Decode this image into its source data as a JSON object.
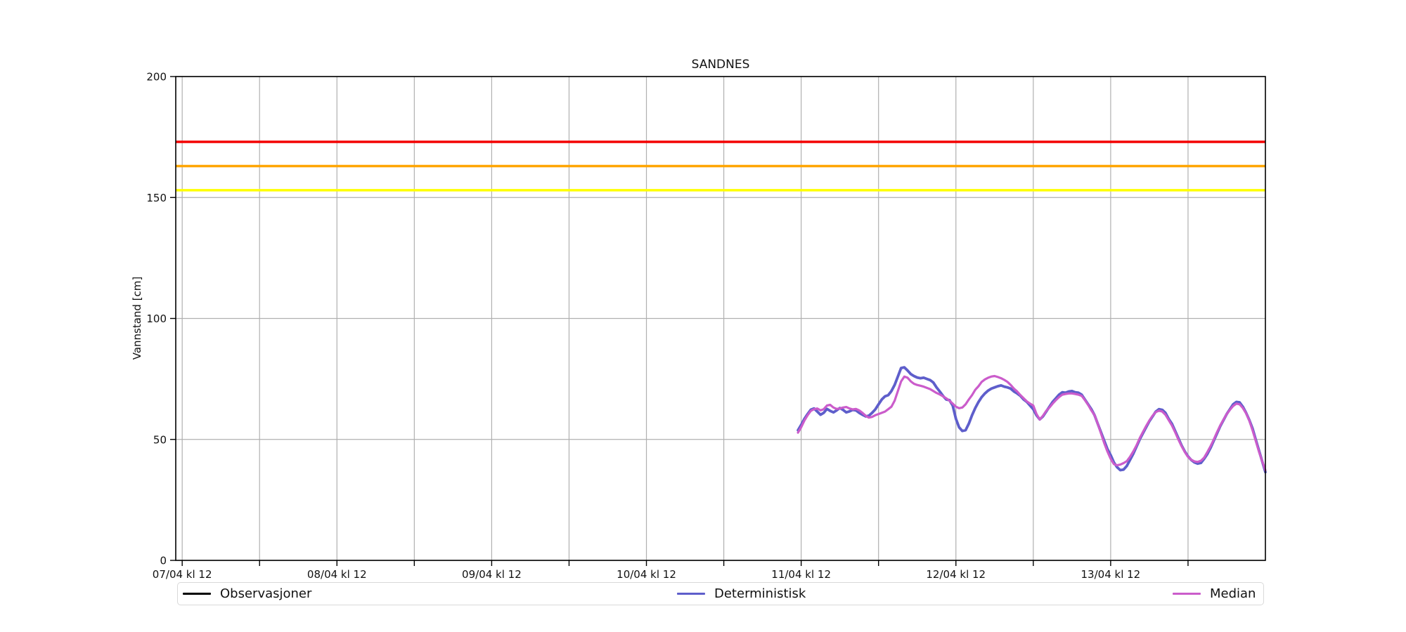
{
  "legend": {
    "items": [
      {
        "label": "Observasjoner",
        "color": "#000000"
      },
      {
        "label": "Deterministisk",
        "color": "#5e5ecb"
      },
      {
        "label": "Median",
        "color": "#cb5ccb"
      }
    ]
  },
  "chart_data": {
    "type": "line",
    "title": "SANDNES",
    "xlabel": "",
    "ylabel": "Vannstand [cm]",
    "ylim": [
      0,
      200
    ],
    "y_ticks": [
      0,
      50,
      100,
      150,
      200
    ],
    "grid": true,
    "grid_color": "#b0b0b0",
    "legend_position": "below-axes",
    "x_axis": {
      "unit": "hours after 07/04 kl 12",
      "min_hour": -1,
      "max_hour": 168,
      "gridline_every_hours": 12
    },
    "x_major_ticks": [
      {
        "hour": 0,
        "label": "07/04 kl 12"
      },
      {
        "hour": 24,
        "label": "08/04 kl 12"
      },
      {
        "hour": 48,
        "label": "09/04 kl 12"
      },
      {
        "hour": 72,
        "label": "10/04 kl 12"
      },
      {
        "hour": 96,
        "label": "11/04 kl 12"
      },
      {
        "hour": 120,
        "label": "12/04 kl 12"
      },
      {
        "hour": 144,
        "label": "13/04 kl 12"
      }
    ],
    "x_minor_tick_hours": [
      12,
      36,
      60,
      84,
      108,
      132,
      156
    ],
    "threshold_lines": [
      {
        "name": "red-level",
        "value": 173,
        "color": "#f40000"
      },
      {
        "name": "orange-level",
        "value": 163,
        "color": "#ffa500"
      },
      {
        "name": "yellow-level",
        "value": 153,
        "color": "#ffff00"
      }
    ],
    "forecast_x_start_hour": 95.5,
    "forecast_x_step_hours": 0.5,
    "series": [
      {
        "name": "Observasjoner",
        "color": "#000000",
        "values": []
      },
      {
        "name": "Deterministisk",
        "color": "#5e5ecb",
        "values": [
          53.8,
          56.0,
          58.5,
          60.5,
          62.3,
          62.8,
          61.5,
          60.2,
          61.0,
          62.6,
          61.8,
          61.2,
          62.0,
          63.0,
          62.2,
          61.2,
          61.6,
          62.2,
          62.0,
          61.0,
          60.2,
          59.5,
          59.8,
          61.0,
          62.4,
          64.5,
          66.5,
          67.8,
          68.3,
          70.0,
          72.5,
          76.0,
          79.5,
          79.8,
          78.5,
          77.0,
          76.2,
          75.6,
          75.3,
          75.5,
          75.0,
          74.5,
          73.5,
          71.5,
          69.8,
          68.0,
          66.5,
          66.2,
          64.0,
          58.5,
          55.0,
          53.5,
          53.8,
          56.5,
          60.0,
          63.0,
          65.5,
          67.5,
          69.0,
          70.2,
          71.0,
          71.5,
          72.0,
          72.3,
          71.8,
          71.5,
          71.0,
          69.8,
          69.0,
          68.0,
          66.5,
          65.5,
          64.0,
          62.5,
          60.0,
          58.3,
          59.5,
          61.5,
          63.5,
          65.5,
          67.0,
          68.5,
          69.5,
          69.3,
          69.8,
          70.0,
          69.5,
          69.3,
          68.5,
          66.5,
          64.5,
          62.5,
          60.0,
          56.5,
          53.0,
          49.5,
          46.0,
          43.5,
          40.5,
          38.5,
          37.3,
          37.5,
          39.0,
          41.5,
          44.0,
          47.0,
          50.0,
          52.5,
          55.0,
          57.5,
          59.5,
          61.5,
          62.5,
          62.2,
          61.0,
          58.5,
          56.5,
          53.5,
          50.5,
          47.5,
          45.0,
          43.0,
          41.5,
          40.5,
          40.0,
          40.3,
          42.0,
          44.0,
          46.5,
          49.5,
          52.5,
          55.5,
          58.0,
          60.5,
          62.5,
          64.5,
          65.5,
          65.3,
          63.5,
          61.0,
          58.0,
          54.5,
          50.0,
          45.5,
          41.0,
          36.5
        ]
      },
      {
        "name": "Median",
        "color": "#cb5ccb",
        "values": [
          52.8,
          55.0,
          57.8,
          60.0,
          61.8,
          62.5,
          62.8,
          62.0,
          62.5,
          64.0,
          64.3,
          63.2,
          62.6,
          62.8,
          63.2,
          63.4,
          62.8,
          62.4,
          62.6,
          62.0,
          61.0,
          59.8,
          59.0,
          59.3,
          60.0,
          60.5,
          61.0,
          61.5,
          62.5,
          63.5,
          66.0,
          70.0,
          74.0,
          76.0,
          75.5,
          74.0,
          73.0,
          72.5,
          72.2,
          71.8,
          71.3,
          70.8,
          70.0,
          69.2,
          68.6,
          67.8,
          67.0,
          66.0,
          64.8,
          63.5,
          62.9,
          63.2,
          64.5,
          66.5,
          68.3,
          70.5,
          72.0,
          73.8,
          74.8,
          75.5,
          76.0,
          76.2,
          75.8,
          75.3,
          74.6,
          73.8,
          72.5,
          71.0,
          69.8,
          68.3,
          67.0,
          65.7,
          64.8,
          64.0,
          60.5,
          58.2,
          59.8,
          61.8,
          63.2,
          64.8,
          66.2,
          67.5,
          68.5,
          68.8,
          69.0,
          69.0,
          68.8,
          68.5,
          68.0,
          66.3,
          64.3,
          62.0,
          60.0,
          56.5,
          52.5,
          48.5,
          45.0,
          42.0,
          39.8,
          39.3,
          39.6,
          40.2,
          41.0,
          42.8,
          45.0,
          47.5,
          50.5,
          53.0,
          55.5,
          57.8,
          59.8,
          61.3,
          61.9,
          61.5,
          60.2,
          58.0,
          55.8,
          53.0,
          50.0,
          47.2,
          44.8,
          42.8,
          41.6,
          40.9,
          40.7,
          41.2,
          42.5,
          44.8,
          47.2,
          50.0,
          53.0,
          55.8,
          58.2,
          60.5,
          62.3,
          63.8,
          64.8,
          64.5,
          63.0,
          60.8,
          57.8,
          53.8,
          49.5,
          45.0,
          41.0,
          37.2
        ]
      }
    ]
  }
}
